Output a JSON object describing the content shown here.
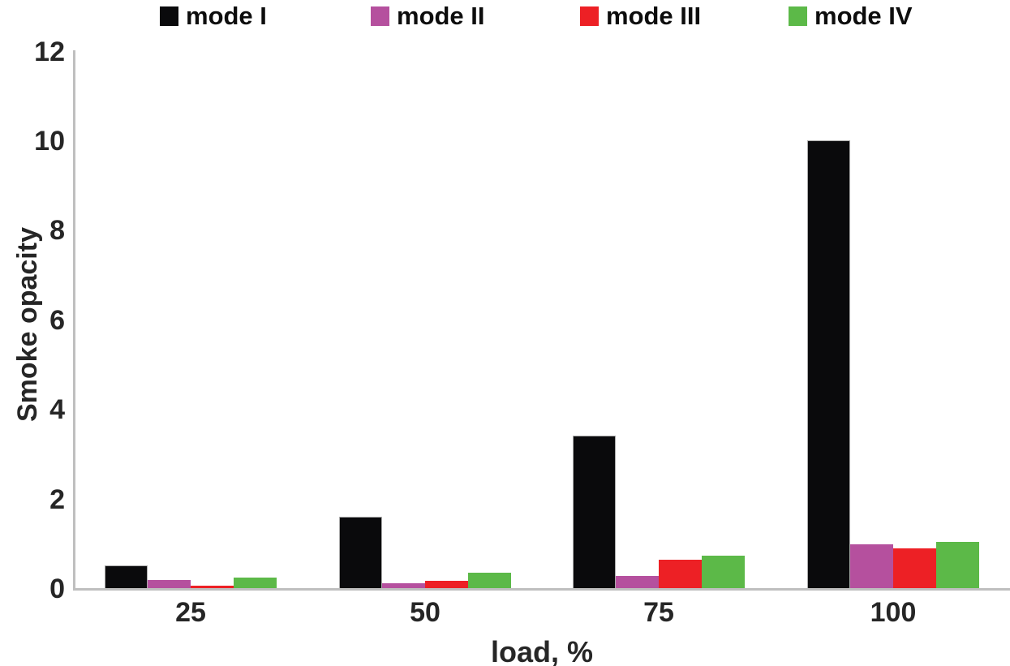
{
  "chart_data": {
    "type": "bar",
    "title": "",
    "xlabel": "load, %",
    "ylabel": "Smoke opacity",
    "categories": [
      "25",
      "50",
      "75",
      "100"
    ],
    "yticks": [
      0,
      2,
      4,
      6,
      8,
      10,
      12
    ],
    "ylim": [
      0,
      12
    ],
    "grid": false,
    "legend_position": "top",
    "axis_color": "#bfbfbf",
    "text_color": "#262626",
    "series": [
      {
        "name": "mode I",
        "color": "#0a0a0c",
        "values": [
          0.5,
          1.6,
          3.4,
          10.0
        ]
      },
      {
        "name": "mode II",
        "color": "#b5509e",
        "values": [
          0.18,
          0.11,
          0.27,
          0.97
        ]
      },
      {
        "name": "mode III",
        "color": "#ed2025",
        "values": [
          0.06,
          0.17,
          0.64,
          0.89
        ]
      },
      {
        "name": "mode IV",
        "color": "#5cb948",
        "values": [
          0.24,
          0.34,
          0.73,
          1.04
        ]
      }
    ]
  }
}
